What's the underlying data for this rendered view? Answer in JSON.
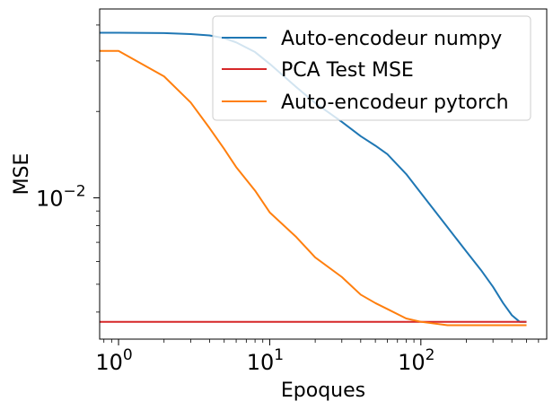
{
  "chart_data": {
    "type": "line",
    "xlabel": "Epoques",
    "ylabel": "MSE",
    "xscale": "log",
    "yscale": "log",
    "xlim": [
      0.75,
      680
    ],
    "ylim": [
      0.00322,
      0.0455
    ],
    "x_ticks": [
      {
        "value": 1,
        "label": "10^0",
        "base": "10",
        "exp": "0"
      },
      {
        "value": 10,
        "label": "10^1",
        "base": "10",
        "exp": "1"
      },
      {
        "value": 100,
        "label": "10^2",
        "base": "10",
        "exp": "2"
      }
    ],
    "y_ticks": [
      {
        "value": 0.01,
        "label": "10^-2",
        "base": "10",
        "exp": "−2"
      }
    ],
    "legend": {
      "placement": "upper right",
      "entries": [
        "Auto-encodeur numpy",
        "PCA Test MSE",
        "Auto-encodeur pytorch"
      ]
    },
    "series": [
      {
        "name": "Auto-encodeur numpy",
        "color": "#1f77b4",
        "points": [
          [
            0.75,
            0.0376
          ],
          [
            1,
            0.0376
          ],
          [
            2,
            0.0375
          ],
          [
            3,
            0.0372
          ],
          [
            4,
            0.0368
          ],
          [
            5,
            0.036
          ],
          [
            6,
            0.0348
          ],
          [
            8,
            0.0322
          ],
          [
            10,
            0.0293
          ],
          [
            15,
            0.0243
          ],
          [
            20,
            0.0214
          ],
          [
            30,
            0.0184
          ],
          [
            40,
            0.0164
          ],
          [
            50,
            0.0152
          ],
          [
            60,
            0.0142
          ],
          [
            80,
            0.0121
          ],
          [
            100,
            0.0104
          ],
          [
            150,
            0.0079
          ],
          [
            200,
            0.0065
          ],
          [
            250,
            0.0056
          ],
          [
            300,
            0.0049
          ],
          [
            350,
            0.0043
          ],
          [
            400,
            0.0039
          ],
          [
            450,
            0.0037
          ],
          [
            500,
            0.0037
          ]
        ]
      },
      {
        "name": "PCA Test MSE",
        "color": "#d62728",
        "points": [
          [
            0.75,
            0.0037
          ],
          [
            500,
            0.0037
          ]
        ]
      },
      {
        "name": "Auto-encodeur pytorch",
        "color": "#ff7f0e",
        "points": [
          [
            0.75,
            0.0325
          ],
          [
            1,
            0.0325
          ],
          [
            2,
            0.0265
          ],
          [
            3,
            0.0215
          ],
          [
            4,
            0.0175
          ],
          [
            5,
            0.0148
          ],
          [
            6,
            0.0128
          ],
          [
            8,
            0.0106
          ],
          [
            10,
            0.0089
          ],
          [
            15,
            0.0073
          ],
          [
            20,
            0.0062
          ],
          [
            30,
            0.0053
          ],
          [
            40,
            0.0046
          ],
          [
            50,
            0.0043
          ],
          [
            60,
            0.0041
          ],
          [
            80,
            0.0038
          ],
          [
            100,
            0.0037
          ],
          [
            150,
            0.0036
          ],
          [
            200,
            0.0036
          ],
          [
            300,
            0.0036
          ],
          [
            500,
            0.0036
          ]
        ]
      }
    ]
  }
}
